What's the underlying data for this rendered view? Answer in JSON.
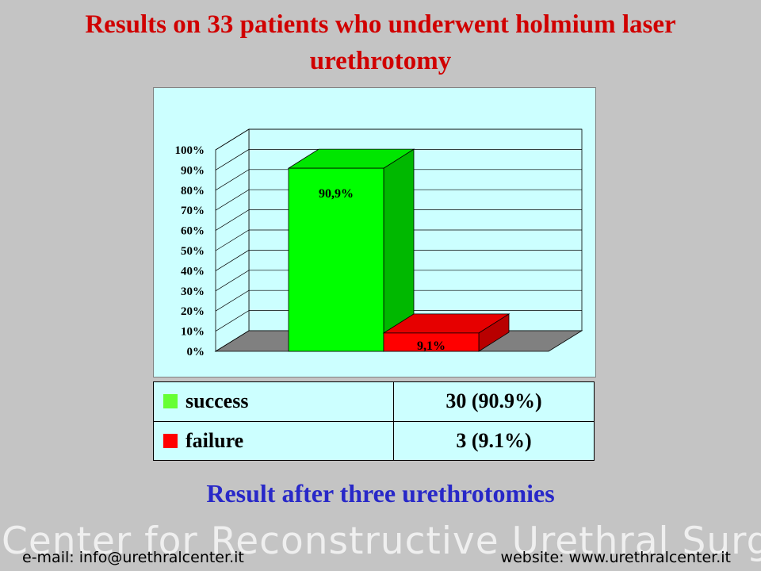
{
  "header": {
    "title": "Results on 33 patients who underwent holmium laser urethrotomy"
  },
  "chart_data": {
    "type": "bar",
    "categories": [
      "success",
      "failure"
    ],
    "values": [
      90.9,
      9.1
    ],
    "data_labels": [
      "90,9%",
      "9,1%"
    ],
    "colors": [
      "#00ff00",
      "#ff0000"
    ],
    "yticks": [
      "0%",
      "10%",
      "20%",
      "30%",
      "40%",
      "50%",
      "60%",
      "70%",
      "80%",
      "90%",
      "100%"
    ],
    "ylim": [
      0,
      100
    ],
    "grid": true,
    "three_d": true
  },
  "table": {
    "rows": [
      {
        "label": "success",
        "value": "30 (90.9%)",
        "color": "#66ff33"
      },
      {
        "label": "failure",
        "value": "3 (9.1%)",
        "color": "#ff0000"
      }
    ]
  },
  "subtitle": "Result after three urethrotomies",
  "footer": {
    "watermark": "Center for Reconstructive Urethral Surgery",
    "email": "e-mail: info@urethralcenter.it",
    "website": "website: www.urethralcenter.it"
  }
}
